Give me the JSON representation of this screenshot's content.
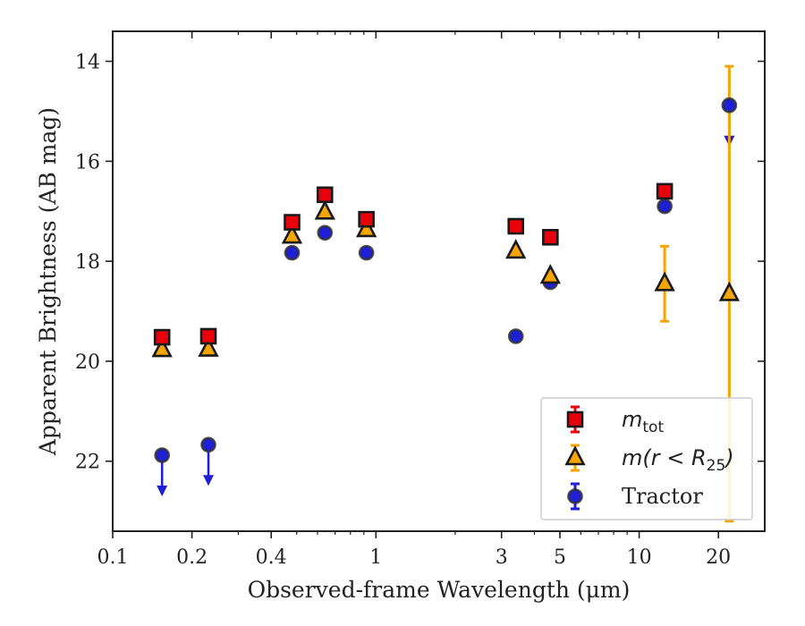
{
  "chart_data": {
    "type": "scatter",
    "xlabel": "Observed-frame Wavelength (μm)",
    "ylabel": "Apparent Brightness (AB mag)",
    "x_scale": "log",
    "xlim": [
      0.1,
      30
    ],
    "ylim": [
      23.4,
      13.4
    ],
    "y_inverted": true,
    "x_ticks": [
      {
        "value": 0.1,
        "label": "0.1"
      },
      {
        "value": 0.2,
        "label": "0.2"
      },
      {
        "value": 0.4,
        "label": "0.4"
      },
      {
        "value": 1,
        "label": "1"
      },
      {
        "value": 3,
        "label": "3"
      },
      {
        "value": 5,
        "label": "5"
      },
      {
        "value": 10,
        "label": "10"
      },
      {
        "value": 20,
        "label": "20"
      }
    ],
    "y_ticks": [
      {
        "value": 14,
        "label": "14"
      },
      {
        "value": 16,
        "label": "16"
      },
      {
        "value": 18,
        "label": "18"
      },
      {
        "value": 20,
        "label": "20"
      },
      {
        "value": 22,
        "label": "22"
      }
    ],
    "legend_position": "lower-right",
    "series": [
      {
        "name": "m_tot",
        "legend_main": "m",
        "legend_sub": "tot",
        "marker": "square",
        "color": "#e8000b",
        "points": [
          {
            "x": 0.154,
            "y": 19.52
          },
          {
            "x": 0.231,
            "y": 19.5
          },
          {
            "x": 0.48,
            "y": 17.22
          },
          {
            "x": 0.64,
            "y": 16.67
          },
          {
            "x": 0.92,
            "y": 17.16
          },
          {
            "x": 3.4,
            "y": 17.3
          },
          {
            "x": 4.6,
            "y": 17.52
          },
          {
            "x": 12.5,
            "y": 16.6
          }
        ]
      },
      {
        "name": "m(r<R25)",
        "legend_main": "m(r < R",
        "legend_sub": "25",
        "legend_close": ")",
        "marker": "triangle",
        "color": "#f5a500",
        "points": [
          {
            "x": 0.154,
            "y": 19.77
          },
          {
            "x": 0.231,
            "y": 19.76
          },
          {
            "x": 0.48,
            "y": 17.5
          },
          {
            "x": 0.64,
            "y": 17.02
          },
          {
            "x": 0.92,
            "y": 17.37
          },
          {
            "x": 3.4,
            "y": 17.8
          },
          {
            "x": 4.6,
            "y": 18.3
          },
          {
            "x": 12.5,
            "y": 18.45,
            "err": [
              17.7,
              19.2
            ]
          },
          {
            "x": 22,
            "y": 18.65,
            "err": [
              14.1,
              23.2
            ]
          }
        ]
      },
      {
        "name": "Tractor",
        "legend_main": "Tractor",
        "marker": "circle",
        "color": "#1f1fd6",
        "points": [
          {
            "x": 0.154,
            "y": 21.88,
            "upper_limit": true
          },
          {
            "x": 0.231,
            "y": 21.67,
            "upper_limit": true
          },
          {
            "x": 0.48,
            "y": 17.83
          },
          {
            "x": 0.64,
            "y": 17.43
          },
          {
            "x": 0.92,
            "y": 17.83
          },
          {
            "x": 3.4,
            "y": 19.5
          },
          {
            "x": 4.6,
            "y": 18.42
          },
          {
            "x": 12.5,
            "y": 16.9
          },
          {
            "x": 22,
            "y": 14.88,
            "upper_limit": true
          }
        ]
      }
    ]
  }
}
